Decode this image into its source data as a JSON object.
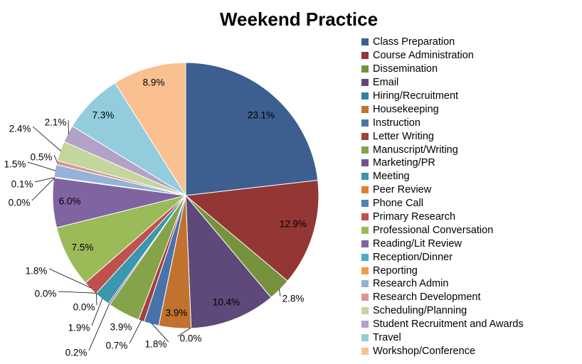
{
  "chart_data": {
    "type": "pie",
    "title": "Weekend Practice",
    "legend_position": "right",
    "start_angle": "top, clockwise",
    "slices": [
      {
        "label": "Class Preparation",
        "value": 23.1,
        "display": "23.1%",
        "color": "#3C5F8F"
      },
      {
        "label": "Course Administration",
        "value": 12.9,
        "display": "12.9%",
        "color": "#943634"
      },
      {
        "label": "Dissemination",
        "value": 2.8,
        "display": "2.8%",
        "color": "#76923C"
      },
      {
        "label": "Email",
        "value": 10.4,
        "display": "10.4%",
        "color": "#5F497A"
      },
      {
        "label": "Hiring/Recruitment",
        "value": 0.0,
        "display": "0.0%",
        "color": "#31849B"
      },
      {
        "label": "Housekeeping",
        "value": 3.9,
        "display": "3.9%",
        "color": "#C0722E"
      },
      {
        "label": "Instruction",
        "value": 1.8,
        "display": "1.8%",
        "color": "#4A72AA"
      },
      {
        "label": "Letter Writing",
        "value": 0.7,
        "display": "0.7%",
        "color": "#A5403D"
      },
      {
        "label": "Manuscript/Writing",
        "value": 3.9,
        "display": "3.9%",
        "color": "#85A449"
      },
      {
        "label": "Marketing/PR",
        "value": 0.2,
        "display": "0.2%",
        "color": "#6D5495"
      },
      {
        "label": "Meeting",
        "value": 1.9,
        "display": "1.9%",
        "color": "#3A97AE"
      },
      {
        "label": "Peer Review",
        "value": 0.0,
        "display": "0.0%",
        "color": "#E07F30"
      },
      {
        "label": "Phone Call",
        "value": 0.0,
        "display": "0.0%",
        "color": "#4F81BD"
      },
      {
        "label": "Primary Research",
        "value": 1.8,
        "display": "1.8%",
        "color": "#C0504D"
      },
      {
        "label": "Professional Conversation",
        "value": 7.5,
        "display": "7.5%",
        "color": "#9BBB59"
      },
      {
        "label": "Reading/Lit Review",
        "value": 6.0,
        "display": "6.0%",
        "color": "#8064A2"
      },
      {
        "label": "Reception/Dinner",
        "value": 0.0,
        "display": "0.0%",
        "color": "#4BACC6"
      },
      {
        "label": "Reporting",
        "value": 0.1,
        "display": "0.1%",
        "color": "#F79646"
      },
      {
        "label": "Research Admin",
        "value": 1.5,
        "display": "1.5%",
        "color": "#95B3D7"
      },
      {
        "label": "Research Development",
        "value": 0.5,
        "display": "0.5%",
        "color": "#D99694"
      },
      {
        "label": "Scheduling/Planning",
        "value": 2.4,
        "display": "2.4%",
        "color": "#C3D69B"
      },
      {
        "label": "Student Recruitment and Awards",
        "value": 2.1,
        "display": "2.1%",
        "color": "#B2A2C7"
      },
      {
        "label": "Travel",
        "value": 7.3,
        "display": "7.3%",
        "color": "#93CDDD"
      },
      {
        "label": "Workshop/Conference",
        "value": 8.9,
        "display": "8.9%",
        "color": "#FAC090"
      }
    ]
  }
}
